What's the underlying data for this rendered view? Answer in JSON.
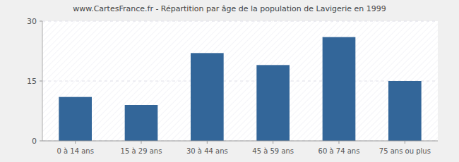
{
  "chart_data": {
    "type": "bar",
    "title": "www.CartesFrance.fr - Répartition par âge de la population de Lavigerie en 1999",
    "categories": [
      "0 à 14 ans",
      "15 à 29 ans",
      "30 à 44 ans",
      "45 à 59 ans",
      "60 à 74 ans",
      "75 ans ou plus"
    ],
    "values": [
      11,
      9,
      22,
      19,
      26,
      15
    ],
    "color": "#336699",
    "ylim": [
      0,
      30
    ],
    "yticks": [
      0,
      15,
      30
    ],
    "grid": true
  }
}
